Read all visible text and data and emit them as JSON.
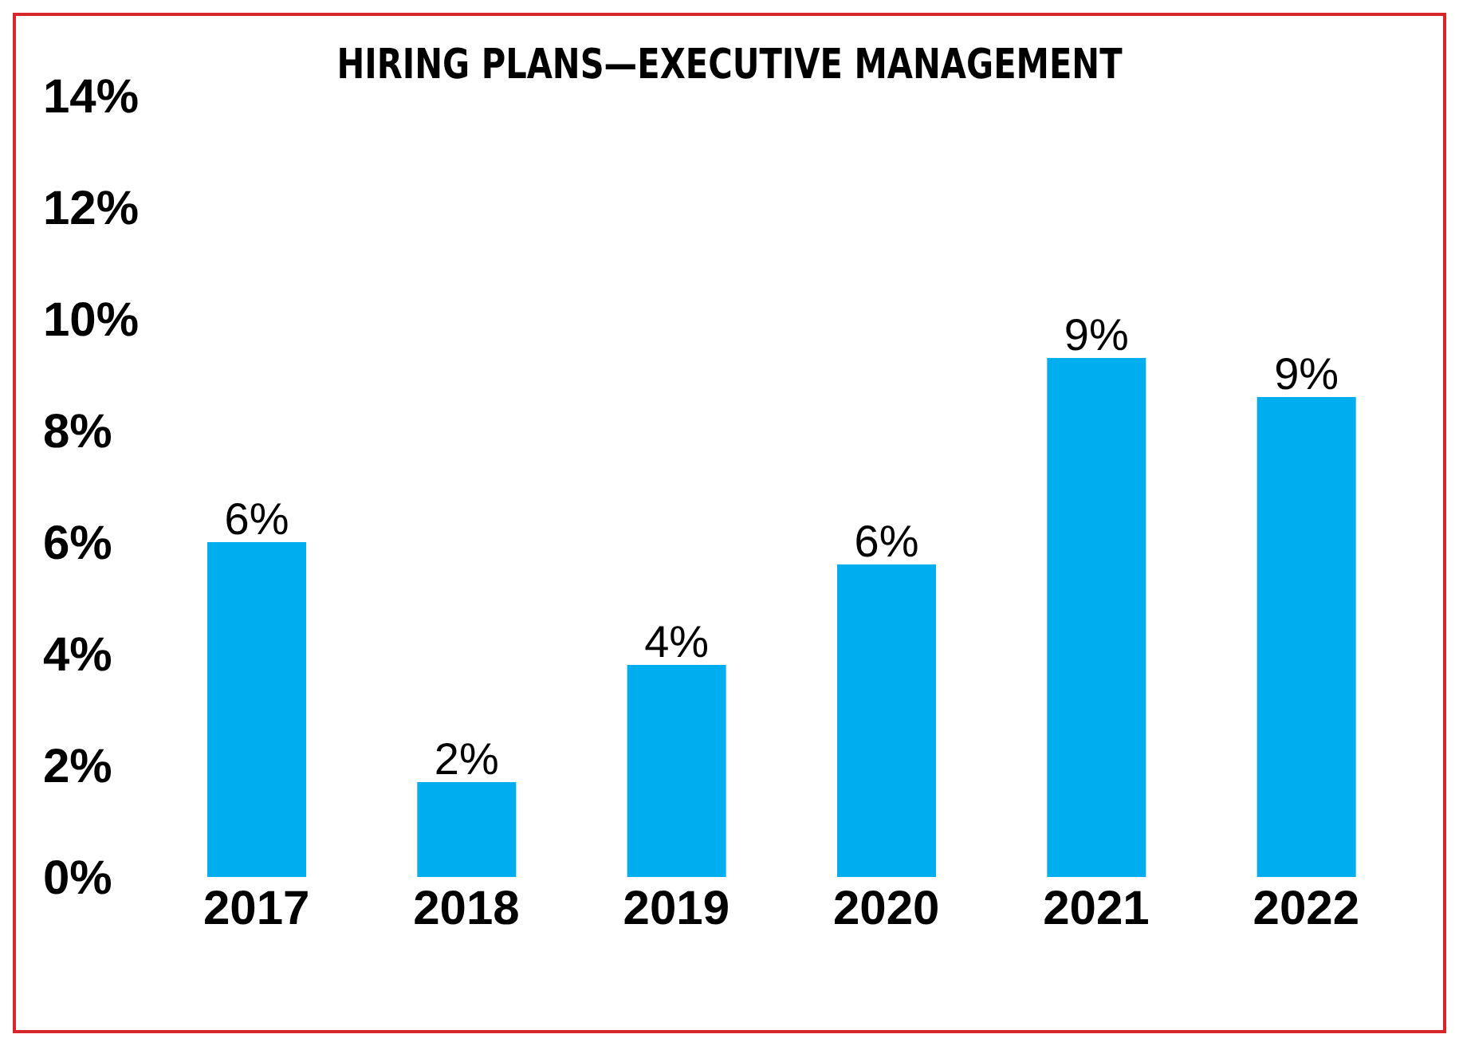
{
  "chart_data": {
    "type": "bar",
    "title": "HIRING PLANS—EXECUTIVE MANAGEMENT",
    "categories": [
      "2017",
      "2018",
      "2019",
      "2020",
      "2021",
      "2022"
    ],
    "values": [
      6.0,
      1.7,
      3.8,
      5.6,
      9.3,
      8.6
    ],
    "value_labels": [
      "6%",
      "2%",
      "4%",
      "6%",
      "9%",
      "9%"
    ],
    "color": "#00aeef",
    "ylim": [
      0,
      14
    ],
    "yticks": [
      {
        "value": 0,
        "label": "0%"
      },
      {
        "value": 2,
        "label": "2%"
      },
      {
        "value": 4,
        "label": "4%"
      },
      {
        "value": 6,
        "label": "6%"
      },
      {
        "value": 8,
        "label": "8%"
      },
      {
        "value": 10,
        "label": "10%"
      },
      {
        "value": 12,
        "label": "12%"
      },
      {
        "value": 14,
        "label": "14%"
      }
    ],
    "grid": false,
    "legend": false
  }
}
